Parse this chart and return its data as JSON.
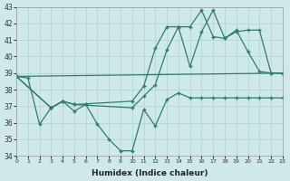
{
  "xlabel": "Humidex (Indice chaleur)",
  "ylabel": "",
  "background_color": "#cfe8ea",
  "grid_color": "#b0d0d2",
  "line_color": "#2d7d6e",
  "ylim": [
    34,
    43
  ],
  "xlim": [
    0,
    23
  ],
  "yticks": [
    34,
    35,
    36,
    37,
    38,
    39,
    40,
    41,
    42,
    43
  ],
  "xticks": [
    0,
    1,
    2,
    3,
    4,
    5,
    6,
    7,
    8,
    9,
    10,
    11,
    12,
    13,
    14,
    15,
    16,
    17,
    18,
    19,
    20,
    21,
    22,
    23
  ],
  "series": [
    {
      "x": [
        0,
        1,
        2,
        3,
        4,
        5,
        6,
        7,
        8,
        9,
        10,
        11,
        12,
        13,
        14,
        15,
        16,
        17,
        18,
        19,
        20,
        21,
        22,
        23
      ],
      "y": [
        38.8,
        38.7,
        35.9,
        36.9,
        37.3,
        36.7,
        37.1,
        35.9,
        35.0,
        34.3,
        34.3,
        36.8,
        35.8,
        37.4,
        37.8,
        37.5,
        37.5,
        37.5,
        37.5,
        37.5,
        37.5,
        37.5,
        37.5,
        37.5
      ]
    },
    {
      "x": [
        0,
        3,
        4,
        5,
        10,
        11,
        12,
        13,
        14,
        15,
        16,
        17,
        18,
        19,
        20,
        21,
        22,
        23
      ],
      "y": [
        38.8,
        36.9,
        37.3,
        37.1,
        37.3,
        38.2,
        40.5,
        41.8,
        41.8,
        41.8,
        42.8,
        41.2,
        41.1,
        41.6,
        40.3,
        39.1,
        39.0,
        39.0
      ]
    },
    {
      "x": [
        0,
        3,
        4,
        5,
        10,
        11,
        12,
        13,
        14,
        15,
        16,
        17,
        18,
        19,
        20,
        21,
        22,
        23
      ],
      "y": [
        38.8,
        36.9,
        37.3,
        37.1,
        36.9,
        37.6,
        38.3,
        40.4,
        41.8,
        39.4,
        41.5,
        42.8,
        41.1,
        41.5,
        41.6,
        41.6,
        39.0,
        39.0
      ]
    },
    {
      "x": [
        0,
        23
      ],
      "y": [
        38.8,
        39.0
      ]
    }
  ]
}
